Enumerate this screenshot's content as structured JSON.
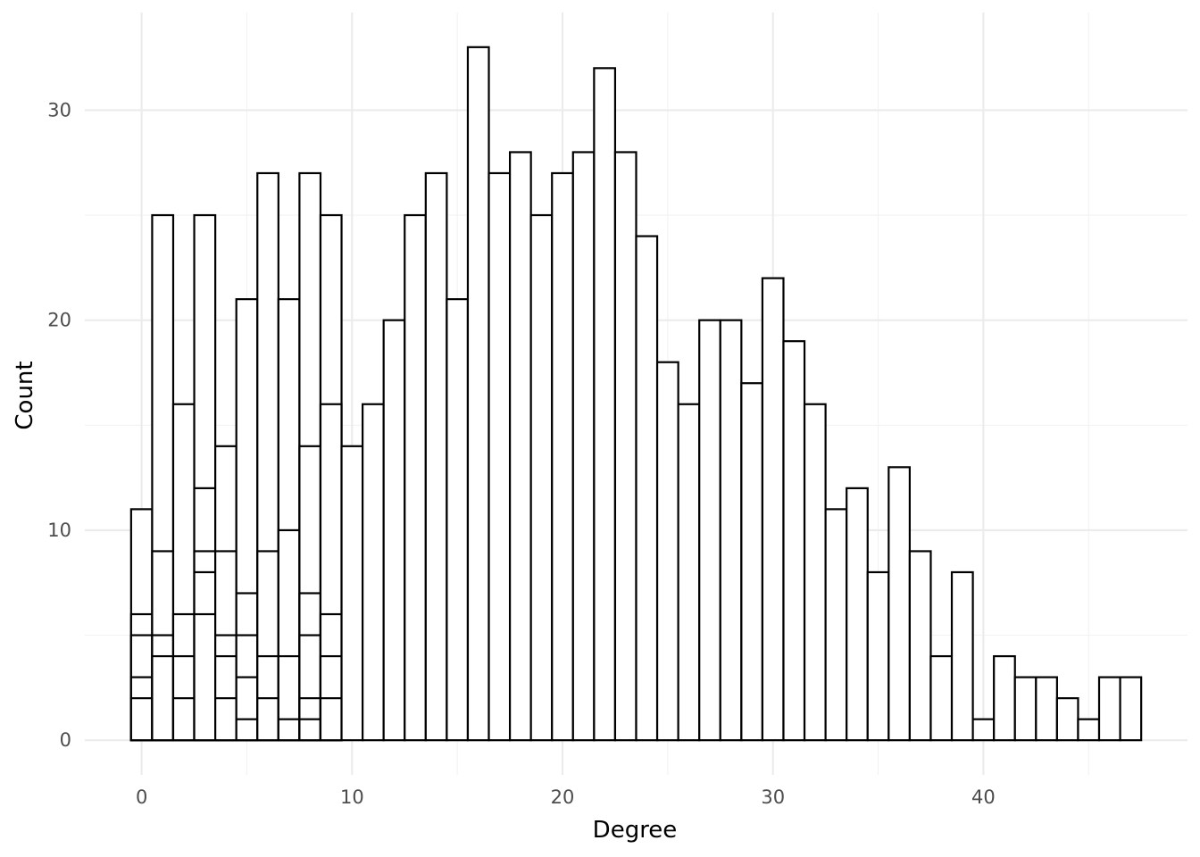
{
  "chart_data": {
    "type": "bar",
    "xlabel": "Degree",
    "ylabel": "Count",
    "xlim": [
      -2.7,
      49.7
    ],
    "ylim": [
      -1.65,
      34.65
    ],
    "x_ticks": [
      0,
      10,
      20,
      30,
      40
    ],
    "y_ticks": [
      0,
      10,
      20,
      30
    ],
    "x_minor_ticks": [
      5,
      15,
      25,
      35,
      45
    ],
    "y_minor_ticks": [
      5,
      15,
      25
    ],
    "grid": true,
    "bar_fill": "#ffffff",
    "bar_outline": "#000000",
    "bin_width": 1,
    "bars": [
      {
        "x": 0,
        "segments": [
          2,
          3,
          5,
          6,
          11
        ]
      },
      {
        "x": 1,
        "segments": [
          4,
          5,
          9,
          25
        ]
      },
      {
        "x": 2,
        "segments": [
          2,
          4,
          6,
          16
        ]
      },
      {
        "x": 3,
        "segments": [
          6,
          8,
          9,
          12,
          25
        ]
      },
      {
        "x": 4,
        "segments": [
          2,
          4,
          5,
          9,
          14
        ]
      },
      {
        "x": 5,
        "segments": [
          1,
          3,
          5,
          7,
          21
        ]
      },
      {
        "x": 6,
        "segments": [
          2,
          4,
          9,
          27
        ]
      },
      {
        "x": 7,
        "segments": [
          1,
          4,
          10,
          21
        ]
      },
      {
        "x": 8,
        "segments": [
          1,
          2,
          5,
          7,
          14,
          27
        ]
      },
      {
        "x": 9,
        "segments": [
          2,
          4,
          6,
          16,
          25
        ]
      },
      {
        "x": 10,
        "segments": [
          14
        ]
      },
      {
        "x": 11,
        "segments": [
          16
        ]
      },
      {
        "x": 12,
        "segments": [
          20
        ]
      },
      {
        "x": 13,
        "segments": [
          25
        ]
      },
      {
        "x": 14,
        "segments": [
          27
        ]
      },
      {
        "x": 15,
        "segments": [
          21
        ]
      },
      {
        "x": 16,
        "segments": [
          33
        ]
      },
      {
        "x": 17,
        "segments": [
          27
        ]
      },
      {
        "x": 18,
        "segments": [
          28
        ]
      },
      {
        "x": 19,
        "segments": [
          25
        ]
      },
      {
        "x": 20,
        "segments": [
          27
        ]
      },
      {
        "x": 21,
        "segments": [
          28
        ]
      },
      {
        "x": 22,
        "segments": [
          32
        ]
      },
      {
        "x": 23,
        "segments": [
          28
        ]
      },
      {
        "x": 24,
        "segments": [
          24
        ]
      },
      {
        "x": 25,
        "segments": [
          18
        ]
      },
      {
        "x": 26,
        "segments": [
          16
        ]
      },
      {
        "x": 27,
        "segments": [
          20
        ]
      },
      {
        "x": 28,
        "segments": [
          20
        ]
      },
      {
        "x": 29,
        "segments": [
          17
        ]
      },
      {
        "x": 30,
        "segments": [
          22
        ]
      },
      {
        "x": 31,
        "segments": [
          19
        ]
      },
      {
        "x": 32,
        "segments": [
          16
        ]
      },
      {
        "x": 33,
        "segments": [
          11
        ]
      },
      {
        "x": 34,
        "segments": [
          12
        ]
      },
      {
        "x": 35,
        "segments": [
          8
        ]
      },
      {
        "x": 36,
        "segments": [
          13
        ]
      },
      {
        "x": 37,
        "segments": [
          9
        ]
      },
      {
        "x": 38,
        "segments": [
          4
        ]
      },
      {
        "x": 39,
        "segments": [
          8
        ]
      },
      {
        "x": 40,
        "segments": [
          1
        ]
      },
      {
        "x": 41,
        "segments": [
          4
        ]
      },
      {
        "x": 42,
        "segments": [
          3
        ]
      },
      {
        "x": 43,
        "segments": [
          3
        ]
      },
      {
        "x": 44,
        "segments": [
          2
        ]
      },
      {
        "x": 45,
        "segments": [
          1
        ]
      },
      {
        "x": 46,
        "segments": [
          3
        ]
      },
      {
        "x": 47,
        "segments": [
          3
        ]
      }
    ]
  }
}
